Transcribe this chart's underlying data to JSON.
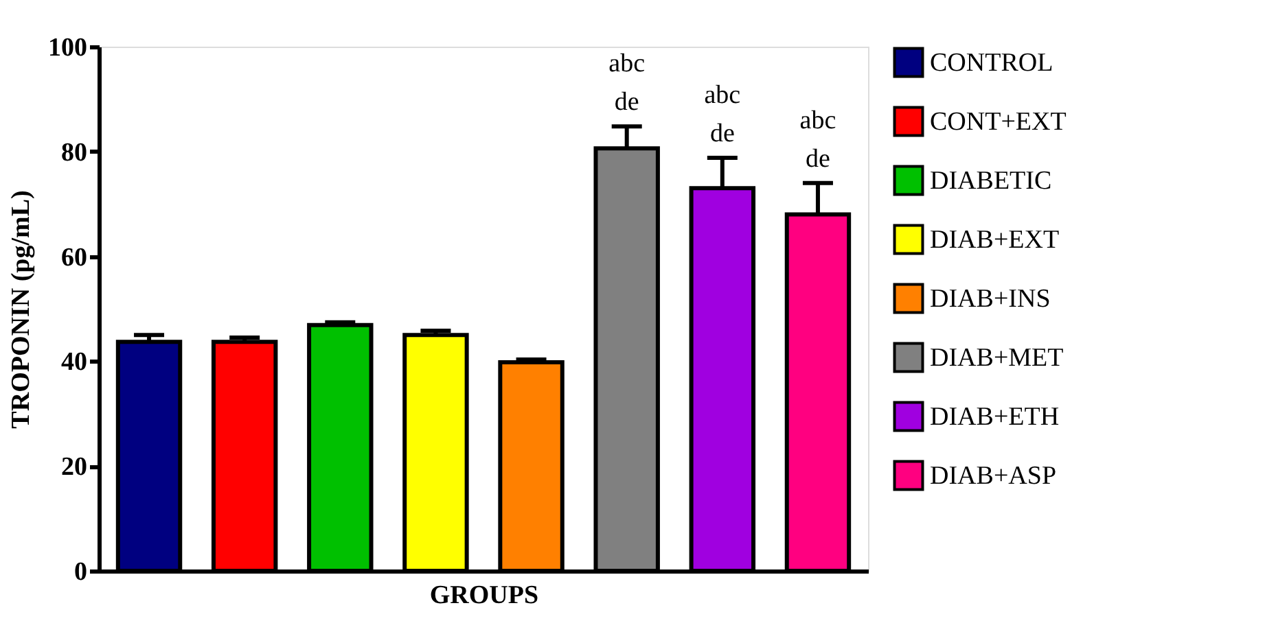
{
  "chart_data": {
    "type": "bar",
    "xlabel": "GROUPS",
    "ylabel": "TROPONIN (pg/mL)",
    "categories": [
      null,
      null,
      null,
      null,
      null,
      null,
      null,
      null
    ],
    "series": [
      {
        "name": "CONTROL",
        "color": "#000080",
        "values": [
          43.7,
          null,
          null,
          null,
          null,
          null,
          null,
          null
        ],
        "errors": [
          1.3,
          null,
          null,
          null,
          null,
          null,
          null,
          null
        ]
      },
      {
        "name": "CONT+EXT",
        "color": "#ff0000",
        "values": [
          null,
          43.7,
          null,
          null,
          null,
          null,
          null,
          null
        ],
        "errors": [
          null,
          0.8,
          null,
          null,
          null,
          null,
          null,
          null
        ]
      },
      {
        "name": "DIABETIC",
        "color": "#00c000",
        "values": [
          null,
          null,
          46.9,
          null,
          null,
          null,
          null,
          null
        ],
        "errors": [
          null,
          null,
          0.5,
          null,
          null,
          null,
          null,
          null
        ]
      },
      {
        "name": "DIAB+EXT",
        "color": "#ffff00",
        "values": [
          null,
          null,
          null,
          45,
          null,
          null,
          null,
          null
        ],
        "errors": [
          null,
          null,
          null,
          0.8,
          null,
          null,
          null,
          null
        ]
      },
      {
        "name": "DIAB+INS",
        "color": "#ff8000",
        "values": [
          null,
          null,
          null,
          null,
          39.8,
          null,
          null,
          null
        ],
        "errors": [
          null,
          null,
          null,
          null,
          0.5,
          null,
          null,
          null
        ]
      },
      {
        "name": "DIAB+MET",
        "color": "#808080",
        "values": [
          null,
          null,
          null,
          null,
          null,
          80.6,
          null,
          null
        ],
        "errors": [
          null,
          null,
          null,
          null,
          null,
          4.2,
          null,
          null
        ]
      },
      {
        "name": "DIAB+ETH",
        "color": "#a000e0",
        "values": [
          null,
          null,
          null,
          null,
          null,
          null,
          73,
          null
        ],
        "errors": [
          null,
          null,
          null,
          null,
          null,
          null,
          5.8,
          null
        ]
      },
      {
        "name": "DIAB+ASP",
        "color": "#ff0080",
        "values": [
          null,
          null,
          null,
          null,
          null,
          null,
          null,
          68
        ],
        "errors": [
          null,
          null,
          null,
          null,
          null,
          null,
          null,
          6
        ]
      }
    ],
    "annotations": [
      {
        "text": "abc\nde",
        "y": 84.8
      },
      {
        "text": "abc\nde",
        "y": 78.8
      },
      {
        "text": "abc\nde",
        "y": 74
      }
    ],
    "ylim": [
      0,
      100
    ],
    "yticks": [
      0,
      20,
      40,
      60,
      80,
      100
    ],
    "grid": false,
    "legend": "right",
    "tick_labels": "y"
  }
}
